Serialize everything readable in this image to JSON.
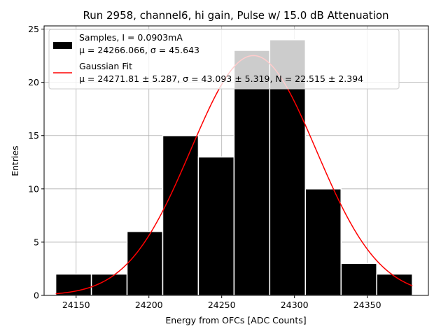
{
  "chart_data": {
    "type": "bar",
    "title": "Run 2958, channel6, hi gain, Pulse w/ 15.0 dB Attenuation",
    "xlabel": "Energy from OFCs [ADC Counts]",
    "ylabel": "Entries",
    "xlim": [
      24128,
      24392
    ],
    "ylim": [
      0,
      25.3
    ],
    "xticks": [
      24150,
      24200,
      24250,
      24300,
      24350
    ],
    "yticks": [
      0,
      5,
      10,
      15,
      20,
      25
    ],
    "grid": true,
    "legend_position": "top-left",
    "bins": {
      "edges": [
        24136,
        24160.5,
        24185,
        24209.5,
        24234,
        24258.5,
        24283,
        24307.5,
        24332,
        24356.5,
        24381
      ],
      "counts": [
        2,
        2,
        6,
        15,
        13,
        23,
        24,
        10,
        3,
        2
      ]
    },
    "fit": {
      "type": "gaussian",
      "mu": 24271.81,
      "sigma": 43.093,
      "amplitude": 22.515,
      "x_range": [
        24136,
        24381
      ]
    },
    "series": [
      {
        "name": "Samples, I = 0.0903mA",
        "detail": "μ = 24266.066, σ = 45.643",
        "color": "#000000"
      },
      {
        "name": "Gaussian Fit",
        "detail": "μ = 24271.81 ± 5.287, σ = 43.093 ± 5.319, N = 22.515 ± 2.394",
        "color": "#ff0000"
      }
    ]
  }
}
